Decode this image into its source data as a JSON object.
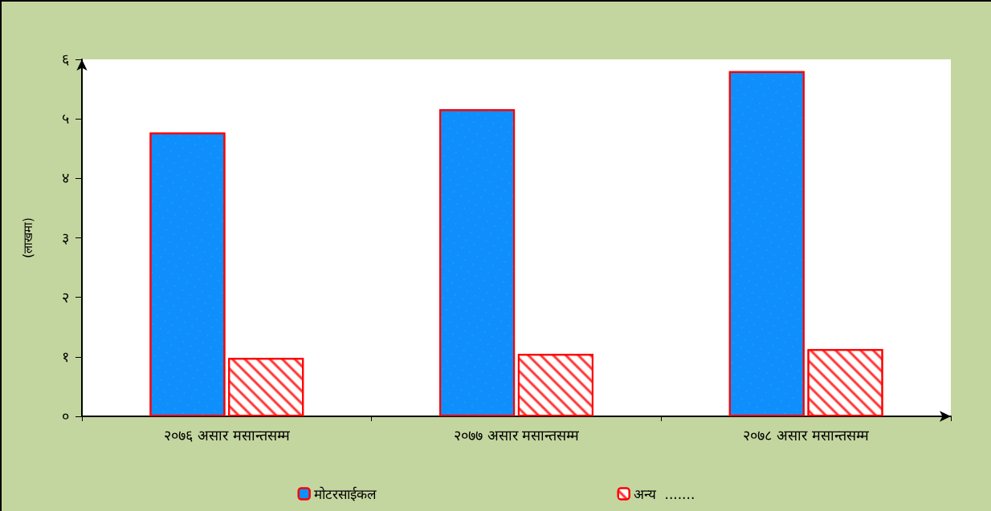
{
  "chart_data": {
    "type": "bar",
    "ylabel": "(लाखमा)",
    "categories": [
      "२०७६ असार मसान्तसम्म",
      "२०७७ असार मसान्तसम्म",
      "२०७८ असार मसान्तसम्म"
    ],
    "series": [
      {
        "name": "मोटरसाईकल",
        "color": "#0f8ffb",
        "values": [
          4.77,
          5.16,
          5.8
        ]
      },
      {
        "name": "अन्य  .......",
        "color": "#ff0000",
        "values": [
          0.98,
          1.05,
          1.13
        ]
      }
    ],
    "ylim": [
      0,
      6
    ],
    "yticks": [
      {
        "value": 0,
        "label": "०"
      },
      {
        "value": 1,
        "label": "१"
      },
      {
        "value": 2,
        "label": "२"
      },
      {
        "value": 3,
        "label": "३"
      },
      {
        "value": 4,
        "label": "४"
      },
      {
        "value": 5,
        "label": "५"
      },
      {
        "value": 6,
        "label": "६"
      }
    ],
    "grid": false,
    "legend": "bottom"
  }
}
